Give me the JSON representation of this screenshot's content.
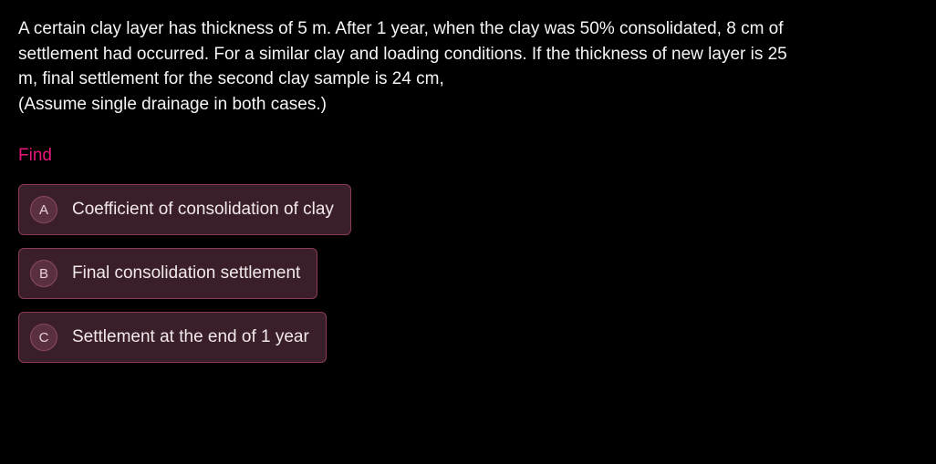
{
  "question": {
    "text": "A certain clay layer has thickness of 5 m. After 1 year, when the clay was 50% consolidated, 8 cm of settlement had occurred. For a similar clay and loading conditions. If the thickness of new layer is 25 m, final settlement for the second clay sample is 24 cm,\n(Assume single drainage in both cases.)"
  },
  "prompt_label": "Find",
  "options": [
    {
      "letter": "A",
      "text": "Coefficient of consolidation of clay"
    },
    {
      "letter": "B",
      "text": "Final consolidation settlement"
    },
    {
      "letter": "C",
      "text": "Settlement at the end of 1 year"
    }
  ],
  "colors": {
    "background": "#000000",
    "text": "#f5f5f5",
    "accent": "#e6177a",
    "option_bg": "#3a1f2a",
    "option_border": "#8a3a5a",
    "letter_bg": "#5a3040"
  }
}
